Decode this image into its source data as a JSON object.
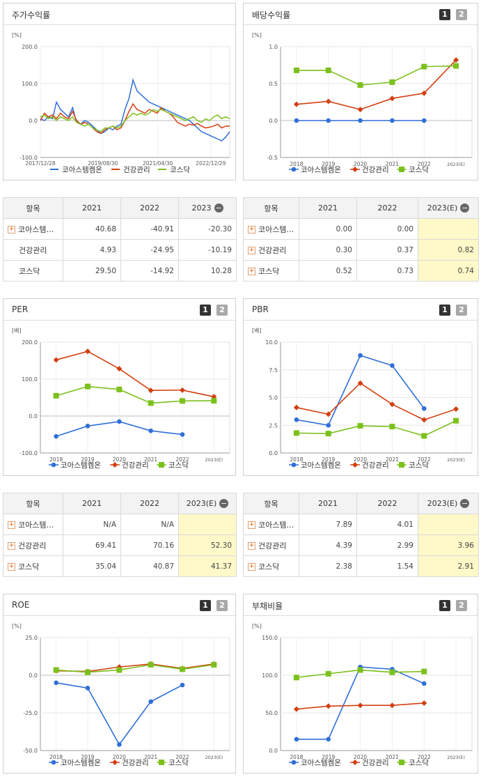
{
  "colors": {
    "s1": "#2e6fd8",
    "s2": "#d23f10",
    "s3": "#7cc01c"
  },
  "chart_data": [
    {
      "id": "stock-return",
      "type": "line",
      "title": "주가수익률",
      "unit": "[%]",
      "ylim": [
        -100,
        200
      ],
      "yticks": [
        200,
        100,
        0,
        -100
      ],
      "ytick_labels": [
        "200.0",
        "100.0",
        "0.0",
        "-100.0"
      ],
      "xtick_labels": [
        "2017/12/28",
        "2019/08/30",
        "2021/04/30",
        "2022/12/29"
      ],
      "xtick_positions": [
        0,
        0.33,
        0.62,
        0.9
      ],
      "legend": [
        "코아스템켐온",
        "건강관리",
        "코스닥"
      ],
      "series": [
        {
          "name": "코아스템켐온",
          "values": [
            5,
            0,
            10,
            5,
            50,
            30,
            20,
            10,
            35,
            -5,
            -10,
            0,
            -5,
            -15,
            -25,
            -35,
            -30,
            -20,
            -25,
            -15,
            -10,
            30,
            60,
            110,
            80,
            70,
            60,
            50,
            45,
            40,
            35,
            30,
            25,
            20,
            15,
            10,
            5,
            0,
            -10,
            -20,
            -30,
            -35,
            -40,
            -45,
            -50,
            -55,
            -45,
            -30
          ]
        },
        {
          "name": "건강관리",
          "values": [
            0,
            20,
            10,
            15,
            5,
            20,
            10,
            5,
            25,
            0,
            -10,
            -5,
            -10,
            -20,
            -30,
            -35,
            -25,
            -20,
            -15,
            -25,
            -20,
            0,
            25,
            45,
            30,
            25,
            20,
            30,
            25,
            20,
            35,
            25,
            20,
            10,
            -5,
            -10,
            -15,
            -10,
            -12,
            -8,
            -15,
            -20,
            -18,
            -15,
            -10,
            -20,
            -15,
            -15
          ]
        },
        {
          "name": "코스닥",
          "values": [
            10,
            15,
            5,
            10,
            0,
            10,
            5,
            0,
            10,
            -5,
            -10,
            -15,
            -10,
            -20,
            -25,
            -30,
            -20,
            -20,
            -15,
            -20,
            -15,
            0,
            10,
            20,
            15,
            20,
            15,
            20,
            30,
            25,
            30,
            25,
            20,
            15,
            10,
            5,
            0,
            5,
            10,
            0,
            -5,
            5,
            0,
            10,
            15,
            5,
            10,
            5
          ]
        }
      ]
    },
    {
      "id": "dividend-yield",
      "type": "line",
      "title": "배당수익률",
      "unit": "[%]",
      "ylim": [
        -0.5,
        1.0
      ],
      "yticks": [
        1.0,
        0.5,
        0,
        -0.5
      ],
      "ytick_labels": [
        "1.0",
        "0.5",
        "0.0",
        "-0.5"
      ],
      "categories": [
        "2018",
        "2019",
        "2020",
        "2021",
        "2022",
        "2023(E)"
      ],
      "legend": [
        "코아스템켐온",
        "건강관리",
        "코스닥"
      ],
      "series": [
        {
          "name": "코아스템켐온",
          "values": [
            0.0,
            0.0,
            0.0,
            0.0,
            0.0,
            null
          ]
        },
        {
          "name": "건강관리",
          "values": [
            0.22,
            0.26,
            0.15,
            0.3,
            0.37,
            0.82
          ]
        },
        {
          "name": "코스닥",
          "values": [
            0.68,
            0.68,
            0.48,
            0.52,
            0.73,
            0.74
          ]
        }
      ]
    },
    {
      "id": "per",
      "type": "line",
      "title": "PER",
      "unit": "[배]",
      "ylim": [
        -100,
        200
      ],
      "yticks": [
        200,
        100,
        0,
        -100
      ],
      "ytick_labels": [
        "200.0",
        "100.0",
        "0.0",
        "-100.0"
      ],
      "categories": [
        "2018",
        "2019",
        "2020",
        "2021",
        "2022",
        "2023(E)"
      ],
      "legend": [
        "코아스템켐온",
        "건강관리",
        "코스닥"
      ],
      "series": [
        {
          "name": "코아스템켐온",
          "values": [
            -55,
            -27,
            -15,
            -40,
            -50,
            null
          ]
        },
        {
          "name": "건강관리",
          "values": [
            152,
            175,
            128,
            69.41,
            70.16,
            52.3
          ]
        },
        {
          "name": "코스닥",
          "values": [
            55,
            80,
            72,
            35.04,
            40.87,
            41.37
          ]
        }
      ]
    },
    {
      "id": "pbr",
      "type": "line",
      "title": "PBR",
      "unit": "[배]",
      "ylim": [
        0,
        10
      ],
      "yticks": [
        10,
        7.5,
        5,
        2.5,
        0
      ],
      "ytick_labels": [
        "10.0",
        "7.5",
        "5.0",
        "2.5",
        "0.0"
      ],
      "categories": [
        "2018",
        "2019",
        "2020",
        "2021",
        "2022",
        "2023(E)"
      ],
      "legend": [
        "코아스템켐온",
        "건강관리",
        "코스닥"
      ],
      "series": [
        {
          "name": "코아스템켐온",
          "values": [
            3.0,
            2.5,
            8.8,
            7.89,
            4.01,
            null
          ]
        },
        {
          "name": "건강관리",
          "values": [
            4.1,
            3.5,
            6.3,
            4.39,
            2.99,
            3.96
          ]
        },
        {
          "name": "코스닥",
          "values": [
            1.8,
            1.75,
            2.45,
            2.38,
            1.54,
            2.91
          ]
        }
      ]
    },
    {
      "id": "roe",
      "type": "line",
      "title": "ROE",
      "unit": "[%]",
      "ylim": [
        -50,
        25
      ],
      "yticks": [
        25,
        0,
        -25,
        -50
      ],
      "ytick_labels": [
        "25.0",
        "0.0",
        "-25.0",
        "-50.0"
      ],
      "categories": [
        "2018",
        "2019",
        "2020",
        "2021",
        "2022",
        "2023(E)"
      ],
      "legend": [
        "코아스템켐온",
        "건강관리",
        "코스닥"
      ],
      "series": [
        {
          "name": "코아스템켐온",
          "values": [
            -5,
            -8.5,
            -46,
            -17.5,
            -6.5,
            null
          ]
        },
        {
          "name": "건강관리",
          "values": [
            3,
            2.5,
            5.5,
            7.5,
            4.5,
            7.5
          ]
        },
        {
          "name": "코스닥",
          "values": [
            3.5,
            2,
            3.5,
            7,
            4,
            7
          ]
        }
      ]
    },
    {
      "id": "debt-ratio",
      "type": "line",
      "title": "부채비율",
      "unit": "[%]",
      "ylim": [
        0,
        150
      ],
      "yticks": [
        150,
        100,
        50,
        0
      ],
      "ytick_labels": [
        "150.0",
        "100.0",
        "50.0",
        "0.0"
      ],
      "categories": [
        "2018",
        "2019",
        "2020",
        "2021",
        "2022",
        "2023(E)"
      ],
      "legend": [
        "코아스템켐온",
        "건강관리",
        "코스닥"
      ],
      "series": [
        {
          "name": "코아스템켐온",
          "values": [
            15,
            15,
            111,
            108,
            89,
            null
          ]
        },
        {
          "name": "건강관리",
          "values": [
            55,
            59,
            60,
            60,
            63,
            null
          ]
        },
        {
          "name": "코스닥",
          "values": [
            97,
            102,
            107,
            104,
            105,
            null
          ]
        }
      ]
    }
  ],
  "pager": {
    "one": "1",
    "two": "2"
  },
  "tables": {
    "stock": {
      "head": [
        "항목",
        "2021",
        "2022",
        "2023"
      ],
      "rows": [
        {
          "name": "코아스템…",
          "v": [
            "40.68",
            "-40.91",
            "-20.30"
          ]
        },
        {
          "name": "건강관리",
          "v": [
            "4.93",
            "-24.95",
            "-10.19"
          ]
        },
        {
          "name": "코스닥",
          "v": [
            "29.50",
            "-14.92",
            "10.28"
          ]
        }
      ]
    },
    "dividend": {
      "head": [
        "항목",
        "2021",
        "2022",
        "2023(E)"
      ],
      "rows": [
        {
          "name": "코아스템…",
          "v": [
            "0.00",
            "0.00",
            ""
          ]
        },
        {
          "name": "건강관리",
          "v": [
            "0.30",
            "0.37",
            "0.82"
          ]
        },
        {
          "name": "코스닥",
          "v": [
            "0.52",
            "0.73",
            "0.74"
          ]
        }
      ]
    },
    "per": {
      "head": [
        "항목",
        "2021",
        "2022",
        "2023(E)"
      ],
      "rows": [
        {
          "name": "코아스템…",
          "v": [
            "N/A",
            "N/A",
            ""
          ]
        },
        {
          "name": "건강관리",
          "v": [
            "69.41",
            "70.16",
            "52.30"
          ]
        },
        {
          "name": "코스닥",
          "v": [
            "35.04",
            "40.87",
            "41.37"
          ]
        }
      ]
    },
    "pbr": {
      "head": [
        "항목",
        "2021",
        "2022",
        "2023(E)"
      ],
      "rows": [
        {
          "name": "코아스템…",
          "v": [
            "7.89",
            "4.01",
            ""
          ]
        },
        {
          "name": "건강관리",
          "v": [
            "4.39",
            "2.99",
            "3.96"
          ]
        },
        {
          "name": "코스닥",
          "v": [
            "2.38",
            "1.54",
            "2.91"
          ]
        }
      ]
    }
  }
}
